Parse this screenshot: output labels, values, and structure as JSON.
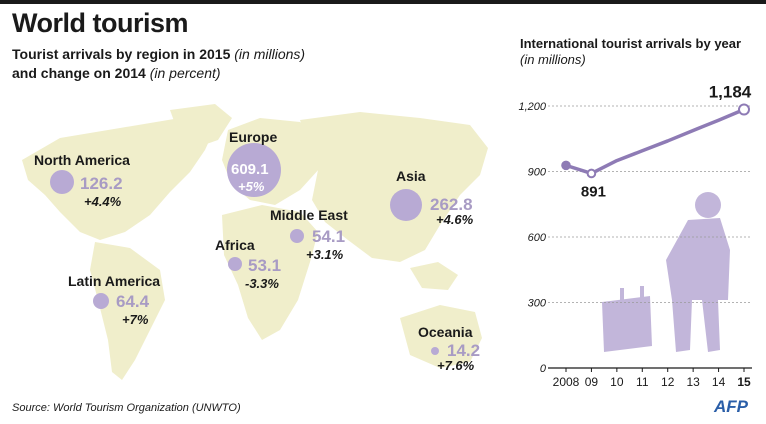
{
  "header": {
    "title": "World tourism",
    "subtitle_line1_bold": "Tourist arrivals by region in 2015",
    "subtitle_line1_italic": "(in millions)",
    "subtitle_line2_bold": "and change on 2014",
    "subtitle_line2_italic": "(in percent)"
  },
  "regions": [
    {
      "name": "North America",
      "value": "126.2",
      "change": "+4.4%"
    },
    {
      "name": "Europe",
      "value": "609.1",
      "change": "+5%"
    },
    {
      "name": "Asia",
      "value": "262.8",
      "change": "+4.6%"
    },
    {
      "name": "Middle East",
      "value": "54.1",
      "change": "+3.1%"
    },
    {
      "name": "Africa",
      "value": "53.1",
      "change": "-3.3%"
    },
    {
      "name": "Latin America",
      "value": "64.4",
      "change": "+7%"
    },
    {
      "name": "Oceania",
      "value": "14.2",
      "change": "+7.6%"
    }
  ],
  "colors": {
    "accent": "#8e7bb5",
    "bubble": "#b8aad4",
    "map": "#f0eecb",
    "afp": "#2a5ea8"
  },
  "chart_data": {
    "type": "line",
    "title": "International tourist arrivals by year",
    "subtitle": "(in millions)",
    "x": [
      "2008",
      "09",
      "10",
      "11",
      "12",
      "13",
      "14",
      "15"
    ],
    "series": [
      {
        "values": [
          928,
          891,
          950,
          995,
          1040,
          1088,
          1135,
          1184
        ]
      }
    ],
    "ylim": [
      0,
      1200
    ],
    "yticks": [
      "1,200",
      "900",
      "600",
      "300",
      "0"
    ],
    "annotations": [
      {
        "x": "09",
        "label": "891"
      },
      {
        "x": "15",
        "label": "1,184"
      }
    ],
    "grid": true
  },
  "footer": {
    "source": "Source: World Tourism Organization (UNWTO)",
    "logo": "AFP"
  }
}
